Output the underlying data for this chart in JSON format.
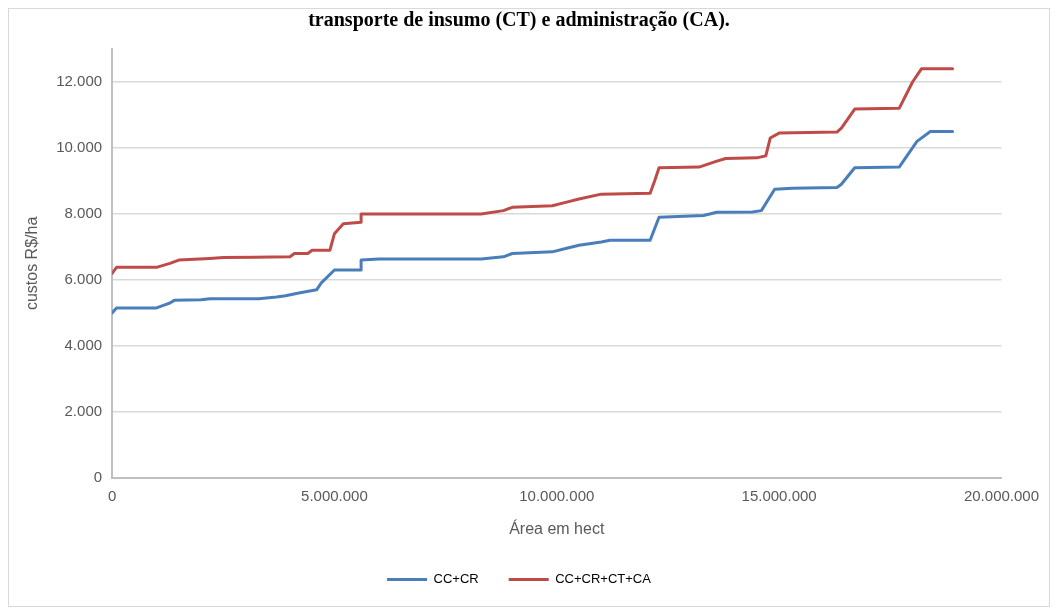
{
  "chart_data": {
    "type": "line",
    "title": "transporte de insumo (CT) e administração (CA).",
    "xlabel": "Área em hect",
    "ylabel": "custos R$/ha",
    "xlim": [
      0,
      20000000
    ],
    "xticks": [
      {
        "value": 0,
        "label": "0"
      },
      {
        "value": 5000000,
        "label": "5.000.000"
      },
      {
        "value": 10000000,
        "label": "10.000.000"
      },
      {
        "value": 15000000,
        "label": "15.000.000"
      },
      {
        "value": 20000000,
        "label": "20.000.000"
      }
    ],
    "ylim": [
      0,
      13000
    ],
    "yticks": [
      {
        "value": 0,
        "label": "0"
      },
      {
        "value": 2000,
        "label": "2.000"
      },
      {
        "value": 4000,
        "label": "4.000"
      },
      {
        "value": 6000,
        "label": "6.000"
      },
      {
        "value": 8000,
        "label": "8.000"
      },
      {
        "value": 10000,
        "label": "10.000"
      },
      {
        "value": 12000,
        "label": "12.000"
      }
    ],
    "grid": "y",
    "legend": "bottom",
    "marker": "none",
    "line_style": "solid",
    "series": [
      {
        "name": "CC+CR",
        "color": "#4a7ebb",
        "x": [
          0,
          100000,
          1000000,
          1200000,
          1300000,
          1400000,
          2000000,
          2200000,
          3300000,
          3700000,
          3900000,
          4200000,
          4600000,
          4700000,
          5000000,
          5600000,
          5600000,
          6000000,
          8300000,
          8800000,
          9000000,
          9900000,
          10200000,
          10500000,
          11000000,
          11200000,
          12100000,
          12300000,
          13300000,
          13600000,
          14400000,
          14600000,
          14900000,
          15300000,
          16300000,
          16400000,
          16700000,
          17700000,
          18100000,
          18400000,
          18900000
        ],
        "values": [
          5000,
          5150,
          5150,
          5250,
          5300,
          5380,
          5400,
          5430,
          5430,
          5480,
          5520,
          5600,
          5700,
          5900,
          6300,
          6300,
          6600,
          6630,
          6630,
          6700,
          6800,
          6850,
          6950,
          7050,
          7150,
          7200,
          7200,
          7900,
          7950,
          8050,
          8060,
          8100,
          8750,
          8780,
          8800,
          8900,
          9400,
          9420,
          10200,
          10500,
          10500
        ]
      },
      {
        "name": "CC+CR+CT+CA",
        "color": "#be4b48",
        "x": [
          0,
          100000,
          1000000,
          1300000,
          1500000,
          2200000,
          2500000,
          4000000,
          4100000,
          4400000,
          4500000,
          4900000,
          5000000,
          5200000,
          5600000,
          5600000,
          8300000,
          8800000,
          9000000,
          9900000,
          10200000,
          10500000,
          11000000,
          12100000,
          12200000,
          12300000,
          13200000,
          13600000,
          13800000,
          14500000,
          14700000,
          14800000,
          15000000,
          16300000,
          16400000,
          16700000,
          17700000,
          18000000,
          18200000,
          18900000
        ],
        "values": [
          6200,
          6380,
          6380,
          6500,
          6600,
          6650,
          6680,
          6700,
          6800,
          6800,
          6900,
          6900,
          7400,
          7700,
          7750,
          8000,
          8000,
          8100,
          8200,
          8250,
          8350,
          8450,
          8600,
          8630,
          9000,
          9400,
          9420,
          9600,
          9680,
          9700,
          9760,
          10300,
          10450,
          10480,
          10600,
          11180,
          11200,
          12000,
          12400,
          12400
        ]
      }
    ]
  }
}
